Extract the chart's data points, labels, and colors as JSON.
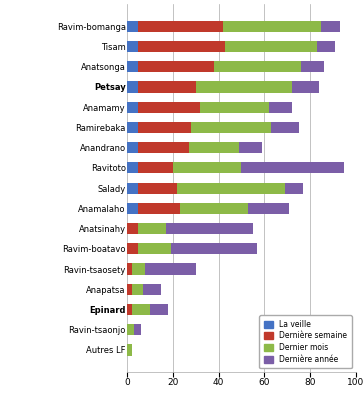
{
  "categories": [
    "Ravim-bomanga",
    "Tisam",
    "Anatsonga",
    "Petsay",
    "Anamamy",
    "Ramirebaka",
    "Anandrano",
    "Ravitoto",
    "Salady",
    "Anamalaho",
    "Anatsinahy",
    "Ravim-boatavo",
    "Ravin-tsaosety",
    "Anapatsa",
    "Epinard",
    "Ravin-tsaonjo",
    "Autres LF"
  ],
  "la_veille": [
    5,
    5,
    5,
    5,
    5,
    5,
    5,
    5,
    5,
    5,
    0,
    0,
    0,
    0,
    0,
    0,
    0
  ],
  "derniere_semaine": [
    37,
    38,
    33,
    25,
    27,
    23,
    22,
    15,
    17,
    18,
    5,
    5,
    2,
    2,
    2,
    0,
    0
  ],
  "dernier_mois": [
    43,
    40,
    38,
    42,
    30,
    35,
    22,
    30,
    47,
    30,
    12,
    14,
    6,
    5,
    8,
    3,
    2
  ],
  "derniere_annee": [
    8,
    8,
    10,
    12,
    10,
    12,
    10,
    45,
    8,
    18,
    38,
    38,
    22,
    8,
    8,
    3,
    0
  ],
  "colors": {
    "la_veille": "#4472c4",
    "derniere_semaine": "#c0392b",
    "dernier_mois": "#8db948",
    "derniere_annee": "#7b5ea7"
  },
  "legend_labels": [
    "La veille",
    "Dernière semaine",
    "Dernier mois",
    "Dernière année"
  ],
  "bold_categories": [
    "Petsay",
    "Epinard"
  ],
  "xlim": [
    0,
    100
  ],
  "xticks": [
    0,
    20,
    40,
    60,
    80,
    100
  ],
  "figsize": [
    3.63,
    3.96
  ],
  "dpi": 100
}
